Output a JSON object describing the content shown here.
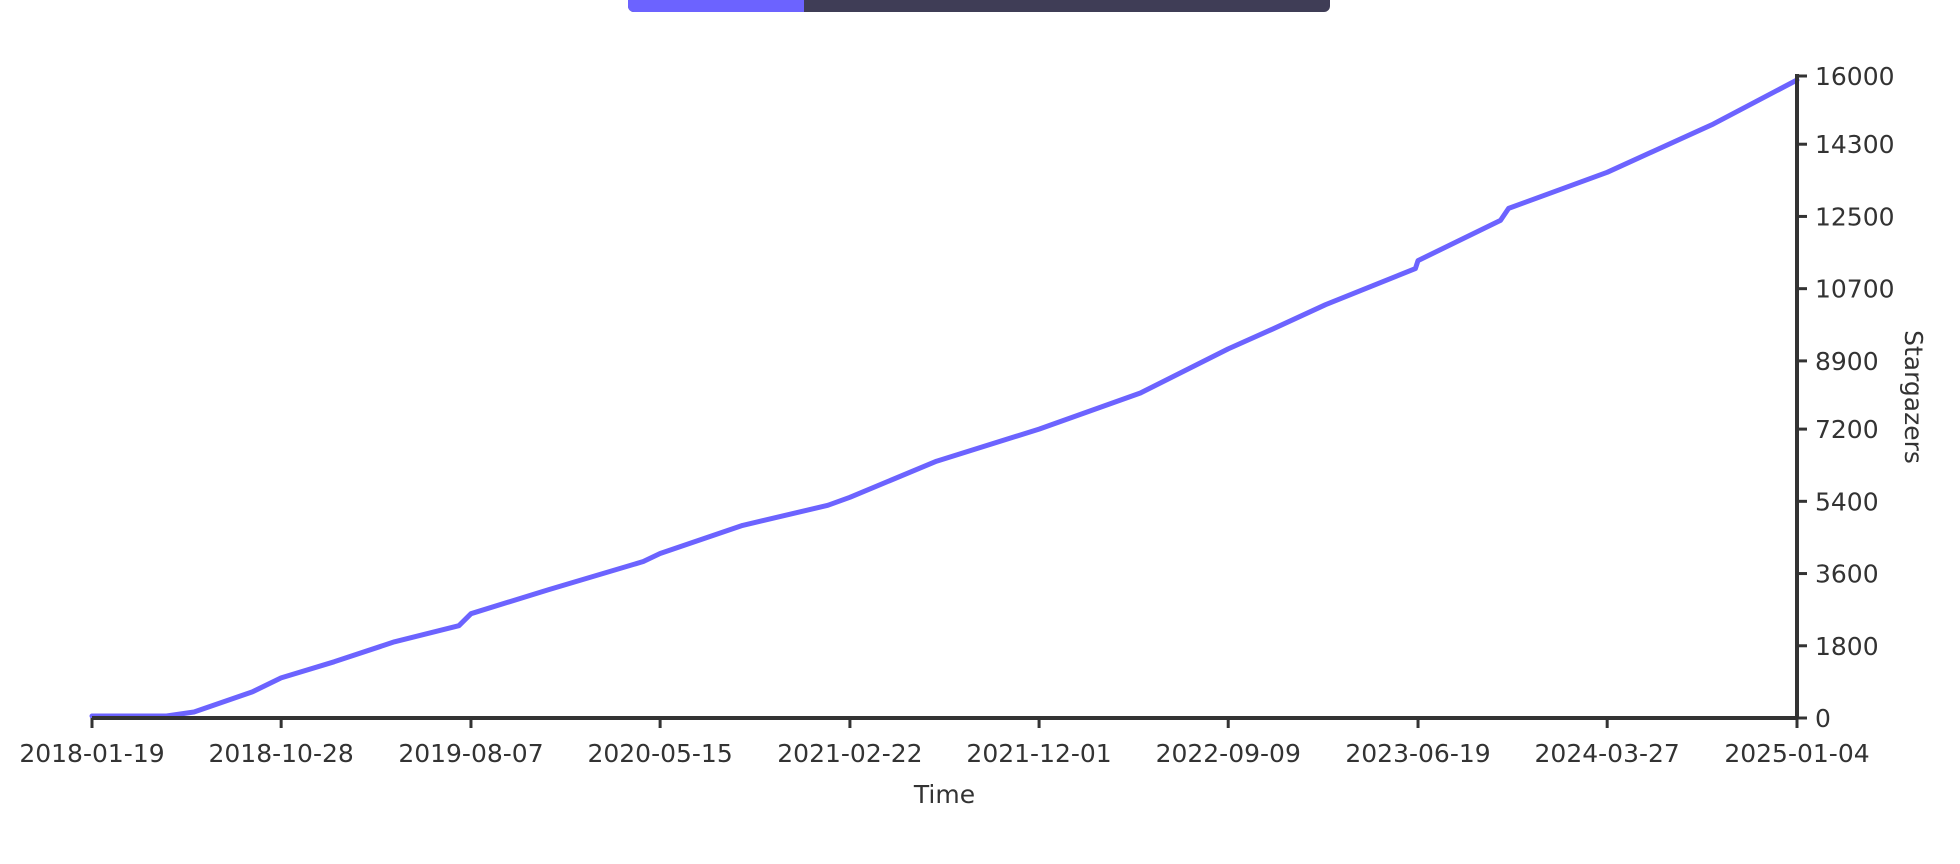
{
  "header": {
    "progress": 0.25
  },
  "colors": {
    "series": "#6c63ff",
    "axis": "#333333",
    "header_track": "#3f3d56",
    "header_fill": "#6c63ff"
  },
  "chart_data": {
    "type": "line",
    "xlabel": "Time",
    "ylabel": "Stargazers",
    "x_ticks": [
      "2018-01-19",
      "2018-10-28",
      "2019-08-07",
      "2020-05-15",
      "2021-02-22",
      "2021-12-01",
      "2022-09-09",
      "2023-06-19",
      "2024-03-27",
      "2025-01-04"
    ],
    "y_ticks": [
      0,
      1800,
      3600,
      5400,
      7200,
      8900,
      10700,
      12500,
      14300,
      16000
    ],
    "xlim": [
      "2018-01-19",
      "2025-01-04"
    ],
    "ylim": [
      0,
      16000
    ],
    "y_axis_position": "right",
    "grid": false,
    "legend": "none",
    "series": [
      {
        "x": [
          "2018-01-19",
          "2018-05-10",
          "2018-06-20",
          "2018-09-15",
          "2018-10-28",
          "2019-01-15",
          "2019-04-15",
          "2019-07-20",
          "2019-08-07",
          "2019-12-01",
          "2020-04-20",
          "2020-05-15",
          "2020-09-15",
          "2021-01-20",
          "2021-02-22",
          "2021-07-01",
          "2021-12-01",
          "2022-05-01",
          "2022-09-09",
          "2022-11-15",
          "2023-02-01",
          "2023-06-15",
          "2023-06-19",
          "2023-10-20",
          "2023-11-01",
          "2024-03-27",
          "2024-09-01",
          "2025-01-04"
        ],
        "y": [
          50,
          50,
          150,
          650,
          1000,
          1400,
          1900,
          2300,
          2600,
          3200,
          3900,
          4100,
          4800,
          5300,
          5500,
          6400,
          7200,
          8100,
          9200,
          9700,
          10300,
          11200,
          11400,
          12400,
          12700,
          13600,
          14800,
          15900
        ]
      }
    ]
  }
}
